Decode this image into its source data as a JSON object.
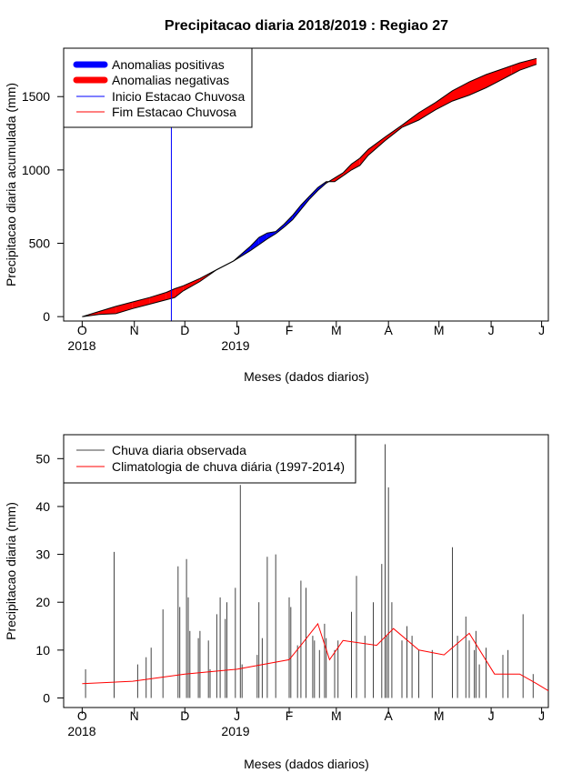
{
  "title": "Precipitacao diaria 2018/2019 : Regiao 27",
  "colors": {
    "positive": "#0000ff",
    "negative": "#ff0000",
    "onset": "#0000ff",
    "end": "#ff0000",
    "observed": "#444444",
    "climatology": "#ff0000"
  },
  "months": [
    "O",
    "N",
    "D",
    "J",
    "F",
    "M",
    "A",
    "M",
    "J",
    "J"
  ],
  "years": [
    "2018",
    "2019"
  ],
  "chart_data": [
    {
      "type": "area",
      "title": "Precipitacao diaria 2018/2019 : Regiao 27",
      "xlabel": "Meses (dados diarios)",
      "ylabel": "Precipitacao diaria acumulada (mm)",
      "x_unit": "days since 2018-10-01",
      "xlim": [
        -11,
        277
      ],
      "ylim": [
        -30,
        1830
      ],
      "yticks": [
        0,
        500,
        1000,
        1500
      ],
      "month_tick_days": [
        0,
        31,
        61,
        92,
        123,
        151,
        182,
        212,
        243,
        273
      ],
      "legend": {
        "position": "top-left",
        "entries": [
          "Anomalias positivas",
          "Anomalias negativas",
          "Inicio Estacao Chuvosa",
          "Fim Estacao Chuvosa"
        ]
      },
      "onset_day": 53,
      "days": [
        0,
        10,
        20,
        30,
        40,
        50,
        55,
        60,
        70,
        80,
        90,
        100,
        105,
        110,
        115,
        120,
        125,
        130,
        135,
        140,
        145,
        150,
        155,
        160,
        165,
        170,
        180,
        190,
        200,
        210,
        220,
        230,
        240,
        250,
        255,
        260,
        270
      ],
      "series": [
        {
          "name": "Chuva observada acumulada (mm)",
          "values": [
            0,
            15,
            20,
            55,
            85,
            115,
            130,
            175,
            240,
            320,
            380,
            480,
            540,
            570,
            580,
            630,
            690,
            760,
            820,
            880,
            920,
            920,
            960,
            1000,
            1030,
            1100,
            1200,
            1290,
            1340,
            1410,
            1470,
            1510,
            1560,
            1620,
            1650,
            1680,
            1720
          ]
        },
        {
          "name": "Climatologia acumulada (mm)",
          "values": [
            0,
            35,
            70,
            100,
            130,
            165,
            190,
            210,
            260,
            320,
            380,
            450,
            490,
            530,
            565,
            610,
            660,
            730,
            800,
            860,
            910,
            945,
            980,
            1040,
            1080,
            1140,
            1225,
            1305,
            1390,
            1460,
            1540,
            1600,
            1650,
            1690,
            1710,
            1730,
            1760
          ]
        }
      ]
    },
    {
      "type": "bar",
      "title": "",
      "xlabel": "Meses (dados diarios)",
      "ylabel": "Precipitacao diaria (mm)",
      "x_unit": "days since 2018-10-01",
      "xlim": [
        -11,
        277
      ],
      "ylim": [
        -2,
        55
      ],
      "yticks": [
        0,
        10,
        20,
        30,
        40,
        50
      ],
      "month_tick_days": [
        0,
        31,
        61,
        92,
        123,
        151,
        182,
        212,
        243,
        273
      ],
      "legend": {
        "position": "top-left",
        "entries": [
          "Chuva diaria observada",
          "Climatologia de chuva diária (1997-2014)"
        ]
      },
      "observed_peaks": {
        "day": [
          2,
          19,
          33,
          38,
          41,
          48,
          57,
          58,
          62,
          63,
          64,
          69,
          70,
          75,
          76,
          80,
          82,
          85,
          86,
          91,
          94,
          95,
          104,
          105,
          107,
          110,
          115,
          123,
          124,
          128,
          130,
          133,
          137,
          138,
          141,
          144,
          145,
          150,
          152,
          160,
          163,
          168,
          173,
          178,
          180,
          181,
          182,
          184,
          190,
          193,
          196,
          200,
          208,
          220,
          223,
          228,
          230,
          233,
          234,
          236,
          240,
          250,
          253,
          262,
          268
        ],
        "mm": [
          6,
          30.5,
          7,
          8.5,
          10.5,
          18.5,
          27.5,
          19,
          29,
          21,
          14,
          12.5,
          14,
          12,
          6,
          17.5,
          21,
          16.5,
          20,
          23,
          44.5,
          7,
          9,
          20,
          12.5,
          29.5,
          30,
          21,
          19,
          11,
          24.5,
          23,
          13,
          12,
          10,
          15.5,
          12.5,
          10,
          12,
          18,
          25.5,
          13,
          20,
          28,
          53,
          13,
          44,
          20,
          12,
          15,
          13,
          10,
          10,
          31.5,
          13,
          17,
          12,
          10,
          14,
          7,
          10.5,
          9,
          10,
          17.5,
          5
        ]
      },
      "climatology_peaks": {
        "day": [
          0,
          30,
          61,
          92,
          123,
          130,
          140,
          147,
          155,
          175,
          185,
          200,
          215,
          230,
          245,
          260,
          270,
          277
        ],
        "mm": [
          3,
          3.5,
          5,
          6,
          8,
          11,
          15.5,
          8,
          12,
          11,
          14.5,
          10,
          9,
          13.5,
          5,
          5,
          3,
          1.5
        ]
      }
    }
  ]
}
